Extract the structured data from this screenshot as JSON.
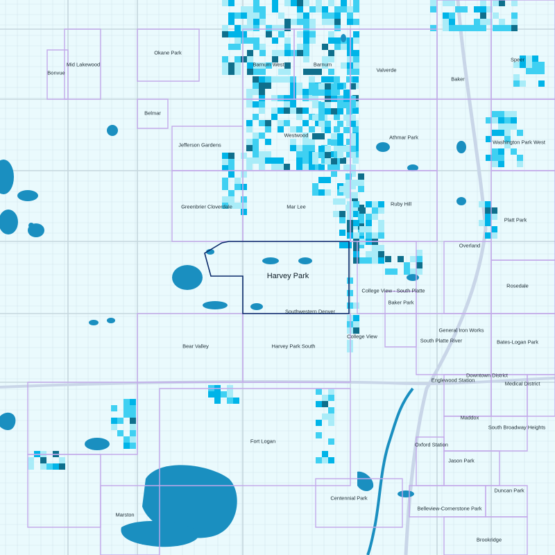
{
  "map": {
    "focus_area": "Harvey Park",
    "colors": {
      "background": "#eafafd",
      "street": "#d3e6ee",
      "arterial": "#c4d6dd",
      "boundary": "#c3a9ea",
      "focus_outline": "#0a2a6b",
      "water": "#1a8fc0",
      "density_light": "#a9ecf8",
      "density_mid": "#3fd0f2",
      "density_high": "#00b4e8",
      "density_max": "#0f6f8c"
    },
    "labels": [
      {
        "name": "Okane Park"
      },
      {
        "name": "Mid Lakewood"
      },
      {
        "name": "Bonvue"
      },
      {
        "name": "Barnum West"
      },
      {
        "name": "Barnum"
      },
      {
        "name": "Valverde"
      },
      {
        "name": "Speer"
      },
      {
        "name": "Baker"
      },
      {
        "name": "Belmar"
      },
      {
        "name": "Westwood"
      },
      {
        "name": "Athmar Park"
      },
      {
        "name": "Washington Park West"
      },
      {
        "name": "Jefferson Gardens"
      },
      {
        "name": "Greenbrier Cloverdale"
      },
      {
        "name": "Mar Lee"
      },
      {
        "name": "Ruby Hill"
      },
      {
        "name": "Platt Park"
      },
      {
        "name": "Overland"
      },
      {
        "name": "Harvey Park",
        "big": true
      },
      {
        "name": "Rosedale"
      },
      {
        "name": "College View - South Platte"
      },
      {
        "name": "Baker Park"
      },
      {
        "name": "Southwestern Denver"
      },
      {
        "name": "General Iron Works"
      },
      {
        "name": "Bear Valley"
      },
      {
        "name": "Harvey Park South"
      },
      {
        "name": "College View"
      },
      {
        "name": "South Platte River"
      },
      {
        "name": "Bates-Logan Park"
      },
      {
        "name": "Downtown District"
      },
      {
        "name": "Englewood Station"
      },
      {
        "name": "Medical District"
      },
      {
        "name": "Maddox"
      },
      {
        "name": "South Broadway Heights"
      },
      {
        "name": "Fort Logan"
      },
      {
        "name": "Oxford Station"
      },
      {
        "name": "Jason Park"
      },
      {
        "name": "Duncan Park"
      },
      {
        "name": "Centennial Park"
      },
      {
        "name": "Belleview-Cornerstone Park"
      },
      {
        "name": "Marston"
      },
      {
        "name": "Brookridge"
      }
    ]
  }
}
